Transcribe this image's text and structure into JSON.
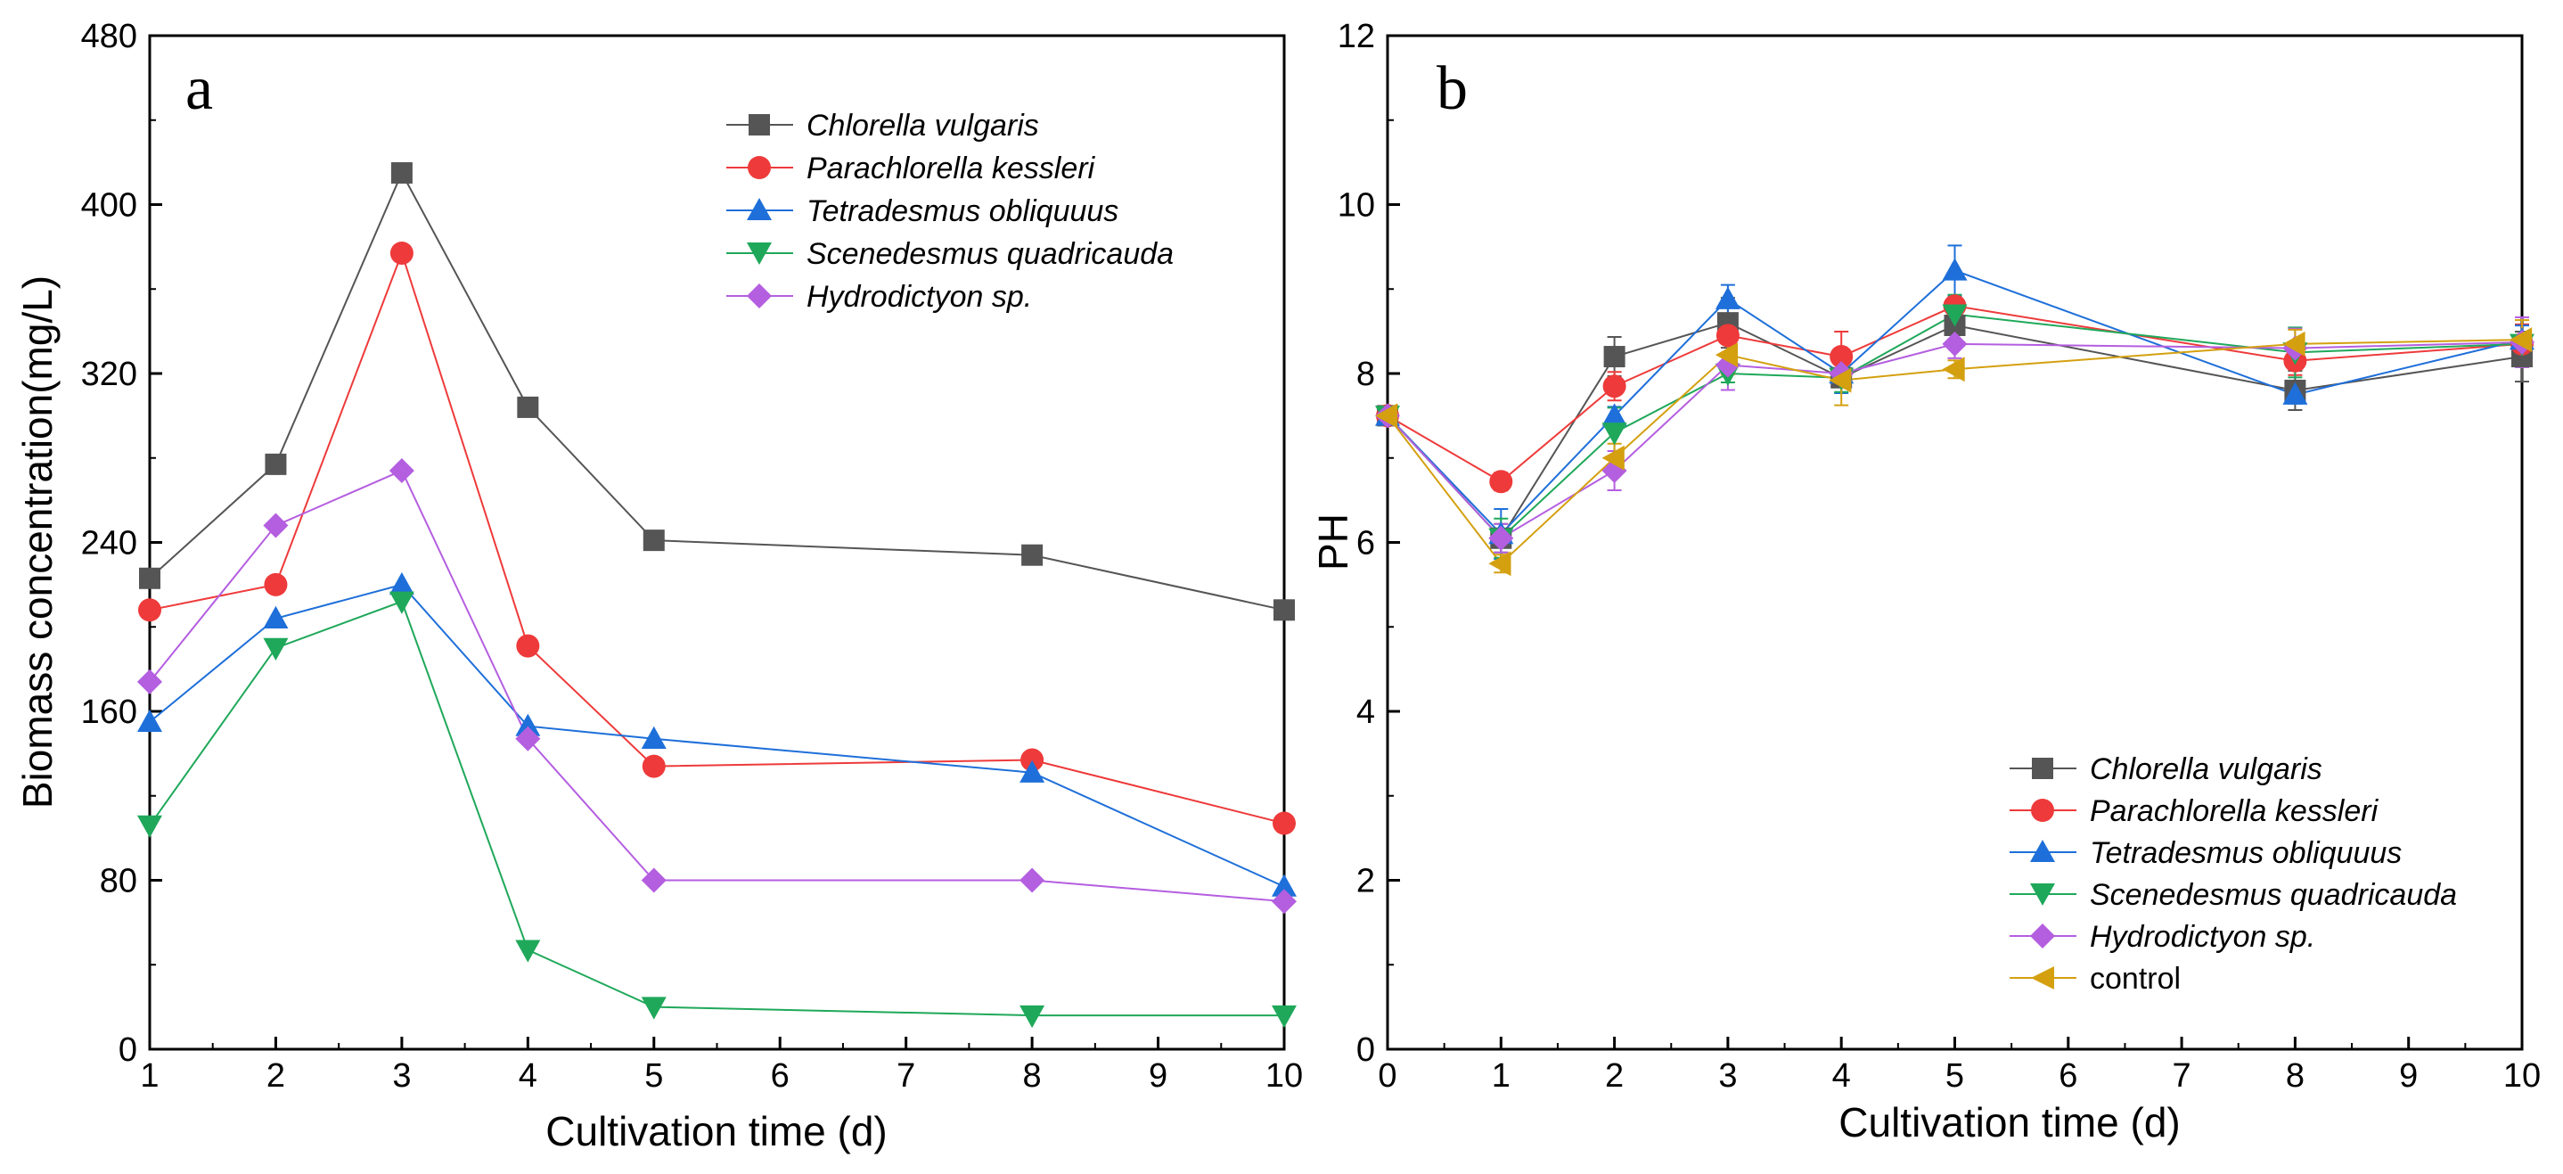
{
  "chart_data": [
    {
      "type": "line",
      "panel_letter": "a",
      "title": "",
      "xlabel": "Cultivation time (d)",
      "ylabel": "Biomass concentration(mg/L)",
      "xlim": [
        1,
        10
      ],
      "ylim": [
        0,
        480
      ],
      "xticks": [
        1,
        2,
        3,
        4,
        5,
        6,
        7,
        8,
        9,
        10
      ],
      "yticks": [
        0,
        80,
        160,
        240,
        320,
        400,
        480
      ],
      "legend_position": "top-right",
      "series": [
        {
          "name": "Chlorella vulgaris",
          "marker": "square",
          "color": "#555555",
          "x": [
            1,
            2,
            3,
            4,
            5,
            8,
            10
          ],
          "y": [
            223,
            277,
            415,
            304,
            241,
            234,
            208
          ]
        },
        {
          "name": "Parachlorella kessleri",
          "marker": "circle",
          "color": "#ee3a3a",
          "x": [
            1,
            2,
            3,
            4,
            5,
            8,
            10
          ],
          "y": [
            208,
            220,
            377,
            191,
            134,
            137,
            107
          ]
        },
        {
          "name": "Tetradesmus obliquuus",
          "marker": "triangle-up",
          "color": "#1e6fd9",
          "x": [
            1,
            2,
            3,
            4,
            5,
            8,
            10
          ],
          "y": [
            155,
            204,
            220,
            153,
            147,
            131,
            77
          ]
        },
        {
          "name": "Scenedesmus quadricauda",
          "marker": "triangle-down",
          "color": "#1fa85a",
          "x": [
            1,
            2,
            3,
            4,
            5,
            8,
            10
          ],
          "y": [
            106,
            190,
            212,
            47,
            20,
            16,
            16
          ]
        },
        {
          "name": "Hydrodictyon sp.",
          "marker": "diamond",
          "color": "#b45ee0",
          "x": [
            1,
            2,
            3,
            4,
            5,
            8,
            10
          ],
          "y": [
            174,
            248,
            274,
            147,
            80,
            80,
            70
          ]
        }
      ]
    },
    {
      "type": "line",
      "panel_letter": "b",
      "title": "",
      "xlabel": "Cultivation time (d)",
      "ylabel": "PH",
      "xlim": [
        0,
        10
      ],
      "ylim": [
        0,
        12
      ],
      "xticks": [
        0,
        1,
        2,
        3,
        4,
        5,
        6,
        7,
        8,
        9,
        10
      ],
      "yticks": [
        0,
        2,
        4,
        6,
        8,
        10,
        12
      ],
      "legend_position": "bottom-right",
      "series": [
        {
          "name": "Chlorella vulgaris",
          "marker": "square",
          "color": "#555555",
          "x": [
            0,
            1,
            2,
            3,
            4,
            5,
            8,
            10
          ],
          "y": [
            7.5,
            6.05,
            8.2,
            8.6,
            7.95,
            8.57,
            7.8,
            8.2
          ]
        },
        {
          "name": "Parachlorella kessleri",
          "marker": "circle",
          "color": "#ee3a3a",
          "x": [
            0,
            1,
            2,
            3,
            4,
            5,
            8,
            10
          ],
          "y": [
            7.5,
            6.72,
            7.85,
            8.45,
            8.2,
            8.8,
            8.15,
            8.35
          ]
        },
        {
          "name": "Tetradesmus obliquuus",
          "marker": "triangle-up",
          "color": "#1e6fd9",
          "x": [
            0,
            1,
            2,
            3,
            4,
            5,
            8,
            10
          ],
          "y": [
            7.5,
            6.1,
            7.5,
            8.88,
            8.0,
            9.22,
            7.75,
            8.4
          ]
        },
        {
          "name": "Scenedesmus quadricauda",
          "marker": "triangle-down",
          "color": "#1fa85a",
          "x": [
            0,
            1,
            2,
            3,
            4,
            5,
            8,
            10
          ],
          "y": [
            7.5,
            6.05,
            7.3,
            8.0,
            7.95,
            8.7,
            8.25,
            8.35
          ]
        },
        {
          "name": "Hydrodictyon sp.",
          "marker": "diamond",
          "color": "#b45ee0",
          "x": [
            0,
            1,
            2,
            3,
            4,
            5,
            8,
            10
          ],
          "y": [
            7.5,
            6.05,
            6.85,
            8.1,
            8.0,
            8.35,
            8.3,
            8.37
          ]
        },
        {
          "name": "control",
          "marker": "triangle-left",
          "color": "#d4a010",
          "x": [
            0,
            1,
            2,
            3,
            4,
            5,
            8,
            10
          ],
          "y": [
            7.5,
            5.75,
            7.0,
            8.22,
            7.92,
            8.05,
            8.35,
            8.4
          ]
        }
      ]
    }
  ]
}
